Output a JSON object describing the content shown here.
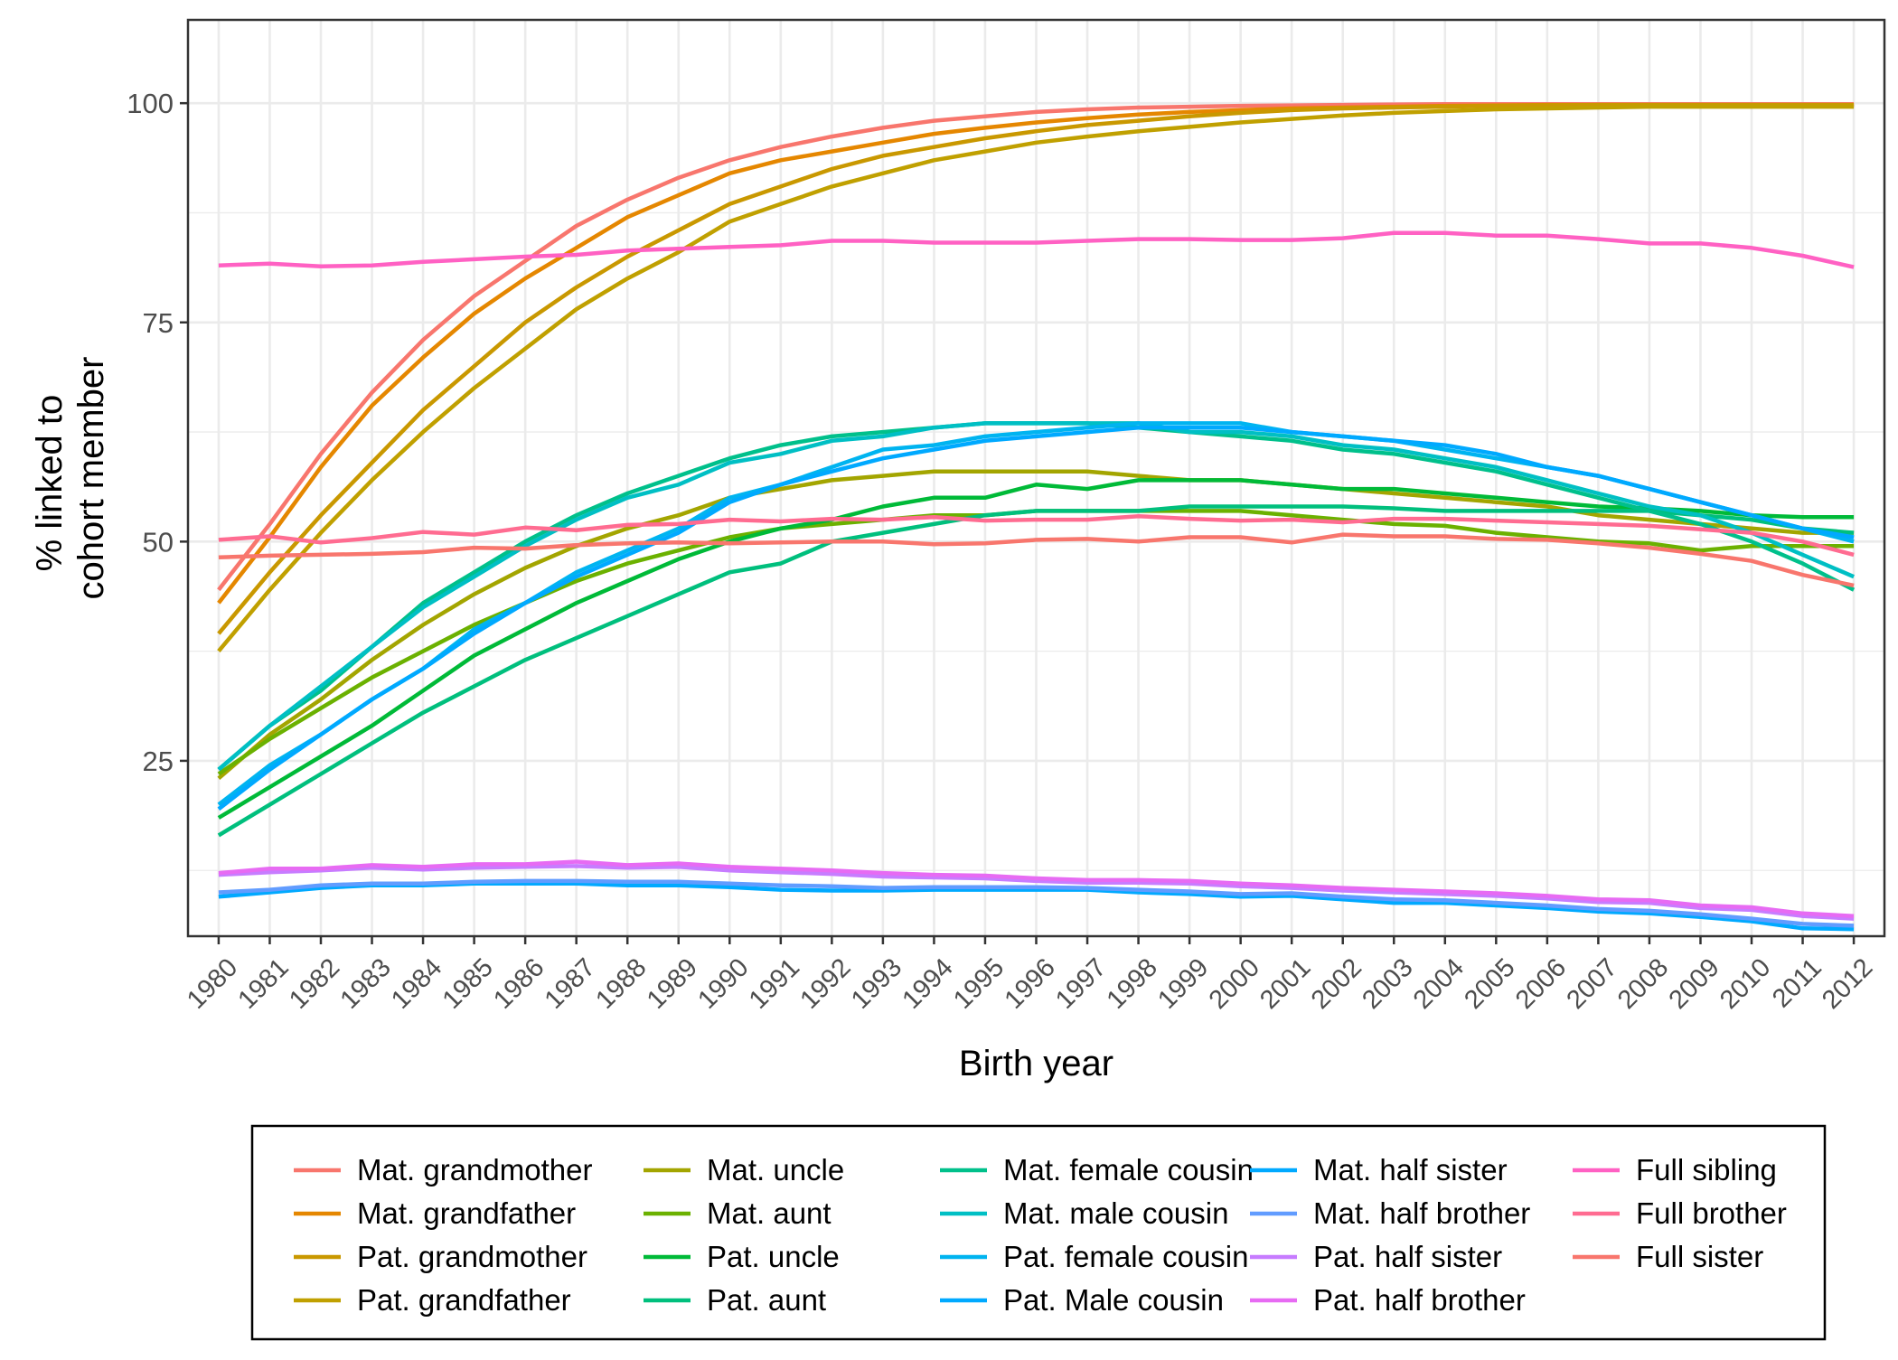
{
  "chart_data": {
    "type": "line",
    "title": "",
    "xlabel": "Birth year",
    "ylabel": [
      "% linked to",
      "cohort member"
    ],
    "x": [
      1980,
      1981,
      1982,
      1983,
      1984,
      1985,
      1986,
      1987,
      1988,
      1989,
      1990,
      1991,
      1992,
      1993,
      1994,
      1995,
      1996,
      1997,
      1998,
      1999,
      2000,
      2001,
      2002,
      2003,
      2004,
      2005,
      2006,
      2007,
      2008,
      2009,
      2010,
      2011,
      2012
    ],
    "xlim": [
      1979.4,
      2012.6
    ],
    "ylim": [
      5,
      109.5
    ],
    "yticks": [
      25,
      50,
      75,
      100
    ],
    "grid": true,
    "legend_position": "bottom",
    "legend_columns": 5,
    "series": [
      {
        "name": "Mat. grandmother",
        "color": "#F8766D",
        "values": [
          44.5,
          52,
          60,
          67,
          73,
          78,
          82,
          86,
          89,
          91.5,
          93.5,
          95,
          96.2,
          97.2,
          98,
          98.5,
          99,
          99.3,
          99.5,
          99.6,
          99.7,
          99.75,
          99.8,
          99.85,
          99.9,
          99.9,
          99.9,
          99.9,
          99.9,
          99.9,
          99.9,
          99.9,
          99.9
        ]
      },
      {
        "name": "Mat. grandfather",
        "color": "#E58700",
        "values": [
          43,
          50.5,
          58.5,
          65.5,
          71,
          76,
          80,
          83.5,
          87,
          89.5,
          92,
          93.5,
          94.5,
          95.5,
          96.5,
          97.2,
          97.8,
          98.3,
          98.7,
          99,
          99.2,
          99.4,
          99.5,
          99.6,
          99.7,
          99.75,
          99.8,
          99.8,
          99.8,
          99.8,
          99.8,
          99.8,
          99.8
        ]
      },
      {
        "name": "Pat. grandmother",
        "color": "#C99800",
        "values": [
          39.5,
          46.5,
          53,
          59,
          65,
          70,
          75,
          79,
          82.5,
          85.5,
          88.5,
          90.5,
          92.5,
          94,
          95,
          96,
          96.8,
          97.5,
          98,
          98.5,
          98.9,
          99.2,
          99.4,
          99.5,
          99.6,
          99.7,
          99.75,
          99.8,
          99.8,
          99.8,
          99.8,
          99.8,
          99.8
        ]
      },
      {
        "name": "Pat. grandfather",
        "color": "#C0A000",
        "values": [
          37.5,
          44.5,
          51,
          57,
          62.5,
          67.5,
          72,
          76.5,
          80,
          83,
          86.5,
          88.5,
          90.5,
          92,
          93.5,
          94.5,
          95.5,
          96.2,
          96.8,
          97.3,
          97.8,
          98.2,
          98.6,
          98.9,
          99.1,
          99.3,
          99.4,
          99.5,
          99.6,
          99.6,
          99.6,
          99.6,
          99.6
        ]
      },
      {
        "name": "Mat. uncle",
        "color": "#A3A500",
        "values": [
          23,
          28,
          32,
          36.5,
          40.5,
          44,
          47,
          49.5,
          51.5,
          53,
          55,
          56,
          57,
          57.5,
          58,
          58,
          58,
          58,
          57.5,
          57,
          57,
          56.5,
          56,
          55.5,
          55,
          54.5,
          54,
          53,
          52.5,
          52,
          51.5,
          51,
          51
        ]
      },
      {
        "name": "Mat. aunt",
        "color": "#6BB100",
        "values": [
          23.5,
          27.5,
          31,
          34.5,
          37.5,
          40.5,
          43,
          45.5,
          47.5,
          49,
          50.5,
          51.5,
          52,
          52.5,
          53,
          53,
          53.5,
          53.5,
          53.5,
          53.5,
          53.5,
          53,
          52.5,
          52,
          51.8,
          51,
          50.5,
          50,
          49.8,
          49,
          49.5,
          49.5,
          49.5
        ]
      },
      {
        "name": "Pat. uncle",
        "color": "#00BA38",
        "values": [
          18.5,
          22,
          25.5,
          29,
          33,
          37,
          40,
          43,
          45.5,
          48,
          50,
          51.5,
          52.5,
          54,
          55,
          55,
          56.5,
          56,
          57,
          57,
          57,
          56.5,
          56,
          56,
          55.5,
          55,
          54.5,
          54,
          53.8,
          53.5,
          53,
          52.8,
          52.8
        ]
      },
      {
        "name": "Pat. aunt",
        "color": "#00BF7D",
        "values": [
          16.5,
          20,
          23.5,
          27,
          30.5,
          33.5,
          36.5,
          39,
          41.5,
          44,
          46.5,
          47.5,
          50,
          51,
          52,
          53,
          53.5,
          53.5,
          53.5,
          54,
          54,
          54,
          54,
          53.8,
          53.5,
          53.5,
          53.5,
          53.5,
          53.5,
          53,
          52.5,
          51.5,
          51
        ]
      },
      {
        "name": "Mat. female cousin",
        "color": "#00C08B",
        "values": [
          24,
          29,
          33,
          38,
          43,
          46.5,
          50,
          53,
          55.5,
          57.5,
          59.5,
          61,
          62,
          62.5,
          63,
          63.5,
          63.5,
          63.5,
          63,
          62.5,
          62,
          61.5,
          60.5,
          60,
          59,
          58,
          56.5,
          55,
          53.5,
          52,
          50,
          47.5,
          44.5
        ]
      },
      {
        "name": "Mat. male cousin",
        "color": "#00BFC4",
        "values": [
          24,
          29,
          33.5,
          38,
          42.5,
          46,
          49.5,
          52.5,
          55,
          56.5,
          59,
          60,
          61.5,
          62,
          63,
          63.5,
          63.5,
          63.5,
          63.5,
          62.5,
          62.5,
          62,
          61,
          60.5,
          59.5,
          58.5,
          57,
          55.5,
          54,
          53,
          51,
          48.5,
          46
        ]
      },
      {
        "name": "Pat. female cousin",
        "color": "#00B4F0",
        "values": [
          20,
          24.5,
          28,
          32,
          35.5,
          40,
          43,
          46.5,
          49,
          51.5,
          55,
          56.5,
          58.5,
          60.5,
          61,
          62,
          62.5,
          63,
          63.5,
          63.5,
          63.5,
          62.5,
          62,
          61.5,
          60.5,
          59.5,
          58.5,
          57.5,
          56,
          54.5,
          53,
          51.5,
          50
        ]
      },
      {
        "name": "Pat. Male cousin",
        "color": "#00A9FF",
        "values": [
          19.5,
          24,
          28,
          32,
          35.5,
          39.5,
          43,
          46,
          48.5,
          51,
          54.5,
          56.5,
          58,
          59.5,
          60.5,
          61.5,
          62,
          62.5,
          63,
          63,
          63,
          62.5,
          62,
          61.5,
          61,
          60,
          58.5,
          57.5,
          56,
          54.5,
          53,
          51.5,
          50.5
        ]
      },
      {
        "name": "Mat. half sister",
        "color": "#00A9FF",
        "values": [
          9.5,
          10,
          10.5,
          10.8,
          10.8,
          11,
          11,
          11,
          10.8,
          10.8,
          10.6,
          10.3,
          10.2,
          10.2,
          10.3,
          10.3,
          10.3,
          10.3,
          10,
          9.8,
          9.5,
          9.6,
          9.2,
          8.8,
          8.8,
          8.5,
          8.2,
          7.8,
          7.6,
          7.2,
          6.7,
          5.9,
          5.8
        ]
      },
      {
        "name": "Mat. half brother",
        "color": "#619CFF",
        "values": [
          10,
          10.3,
          10.8,
          11,
          11,
          11.2,
          11.3,
          11.3,
          11.2,
          11.2,
          11,
          10.8,
          10.7,
          10.5,
          10.6,
          10.6,
          10.6,
          10.5,
          10.3,
          10.1,
          9.8,
          9.9,
          9.5,
          9.2,
          9.1,
          8.8,
          8.5,
          8.1,
          7.9,
          7.5,
          7,
          6.4,
          6.2
        ]
      },
      {
        "name": "Pat. half sister",
        "color": "#C77CFF",
        "values": [
          12,
          12.3,
          12.5,
          12.8,
          12.6,
          12.8,
          12.9,
          13,
          12.8,
          12.9,
          12.5,
          12.3,
          12.1,
          11.8,
          11.7,
          11.6,
          11.3,
          11.1,
          11.1,
          11,
          10.7,
          10.5,
          10.2,
          10,
          9.8,
          9.6,
          9.3,
          8.9,
          8.8,
          8.2,
          8,
          7.3,
          7
        ]
      },
      {
        "name": "Pat. half brother",
        "color": "#E76BF3",
        "values": [
          12.2,
          12.7,
          12.7,
          13.1,
          12.9,
          13.2,
          13.2,
          13.5,
          13.1,
          13.3,
          12.9,
          12.7,
          12.5,
          12.2,
          12,
          11.9,
          11.6,
          11.4,
          11.4,
          11.3,
          11,
          10.8,
          10.5,
          10.3,
          10.1,
          9.9,
          9.6,
          9.2,
          9.1,
          8.5,
          8.3,
          7.6,
          7.3
        ]
      },
      {
        "name": "Full sibling",
        "color": "#FF61C3",
        "values": [
          81.5,
          81.7,
          81.4,
          81.5,
          81.9,
          82.2,
          82.5,
          82.7,
          83.2,
          83.4,
          83.6,
          83.8,
          84.3,
          84.3,
          84.1,
          84.1,
          84.1,
          84.3,
          84.5,
          84.5,
          84.4,
          84.4,
          84.6,
          85.2,
          85.2,
          84.9,
          84.9,
          84.5,
          84,
          84,
          83.5,
          82.6,
          81.3
        ]
      },
      {
        "name": "Full brother",
        "color": "#FF6C91",
        "values": [
          50.2,
          50.6,
          49.9,
          50.4,
          51.1,
          50.8,
          51.6,
          51.3,
          51.9,
          52,
          52.5,
          52.3,
          52.6,
          52.5,
          52.8,
          52.4,
          52.5,
          52.5,
          52.9,
          52.6,
          52.4,
          52.5,
          52.2,
          52.6,
          52.6,
          52.4,
          52.2,
          52,
          51.8,
          51.4,
          51,
          50,
          48.5
        ]
      },
      {
        "name": "Full sister",
        "color": "#F8766D",
        "values": [
          48.2,
          48.4,
          48.5,
          48.6,
          48.8,
          49.3,
          49.2,
          49.6,
          49.8,
          49.9,
          49.8,
          49.9,
          50,
          50,
          49.7,
          49.8,
          50.2,
          50.3,
          50,
          50.5,
          50.5,
          49.9,
          50.8,
          50.6,
          50.6,
          50.3,
          50.2,
          49.8,
          49.3,
          48.6,
          47.8,
          46.2,
          45
        ]
      }
    ]
  }
}
